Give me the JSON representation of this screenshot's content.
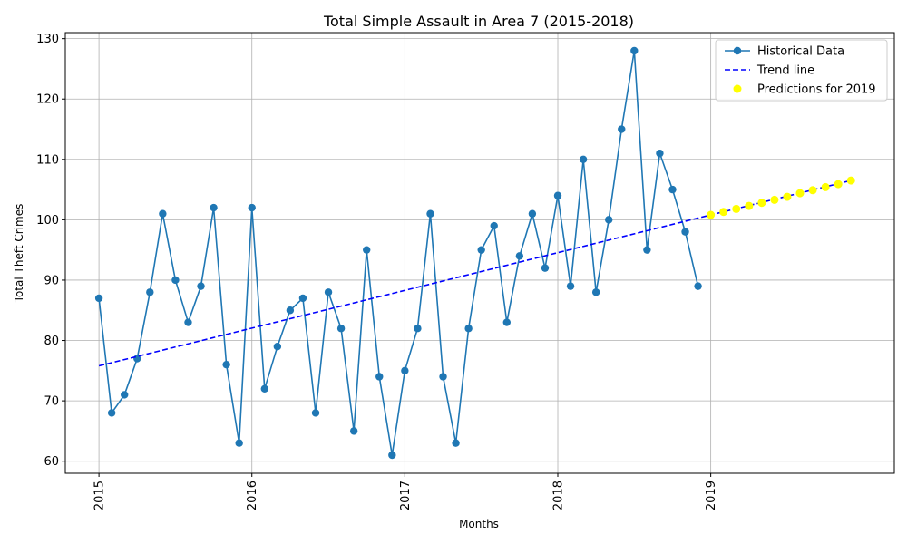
{
  "chart_data": {
    "type": "line",
    "title": "Total Simple Assault in Area 7 (2015-2018)",
    "xlabel": "Months",
    "ylabel": "Total Theft Crimes",
    "ylim": [
      58,
      131
    ],
    "yticks": [
      60,
      70,
      80,
      90,
      100,
      110,
      120,
      130
    ],
    "xlim": [
      2014.78,
      2020.2
    ],
    "xticks": [
      {
        "value": 2015,
        "label": "2015"
      },
      {
        "value": 2016,
        "label": "2016"
      },
      {
        "value": 2017,
        "label": "2017"
      },
      {
        "value": 2018,
        "label": "2018"
      },
      {
        "value": 2019,
        "label": "2019"
      }
    ],
    "grid": true,
    "legend_position": "top-right",
    "series": [
      {
        "name": "Historical Data",
        "kind": "line-marker",
        "color": "#1f77b4",
        "x": [
          2015.0,
          2015.0833,
          2015.1667,
          2015.25,
          2015.3333,
          2015.4167,
          2015.5,
          2015.5833,
          2015.6667,
          2015.75,
          2015.8333,
          2015.9167,
          2016.0,
          2016.0833,
          2016.1667,
          2016.25,
          2016.3333,
          2016.4167,
          2016.5,
          2016.5833,
          2016.6667,
          2016.75,
          2016.8333,
          2016.9167,
          2017.0,
          2017.0833,
          2017.1667,
          2017.25,
          2017.3333,
          2017.4167,
          2017.5,
          2017.5833,
          2017.6667,
          2017.75,
          2017.8333,
          2017.9167,
          2018.0,
          2018.0833,
          2018.1667,
          2018.25,
          2018.3333,
          2018.4167,
          2018.5,
          2018.5833,
          2018.6667,
          2018.75,
          2018.8333,
          2018.9167
        ],
        "values": [
          87,
          68,
          71,
          77,
          88,
          101,
          90,
          83,
          89,
          102,
          76,
          63,
          102,
          72,
          79,
          85,
          87,
          68,
          88,
          82,
          65,
          95,
          74,
          61,
          75,
          82,
          101,
          74,
          63,
          82,
          95,
          99,
          83,
          94,
          101,
          92,
          104,
          89,
          110,
          88,
          100,
          115,
          128,
          95,
          111,
          105,
          98,
          89
        ]
      },
      {
        "name": "Trend line",
        "kind": "dashed-line",
        "color": "#0000ff",
        "x": [
          2015.0,
          2019.0,
          2019.9167
        ],
        "values": [
          75.8,
          100.8,
          106.5
        ]
      },
      {
        "name": "Predictions for 2019",
        "kind": "scatter",
        "color": "#ffff00",
        "x": [
          2019.0,
          2019.0833,
          2019.1667,
          2019.25,
          2019.3333,
          2019.4167,
          2019.5,
          2019.5833,
          2019.6667,
          2019.75,
          2019.8333,
          2019.9167
        ],
        "values": [
          100.8,
          101.3,
          101.8,
          102.3,
          102.8,
          103.3,
          103.8,
          104.4,
          104.9,
          105.4,
          105.9,
          106.5
        ]
      }
    ]
  }
}
